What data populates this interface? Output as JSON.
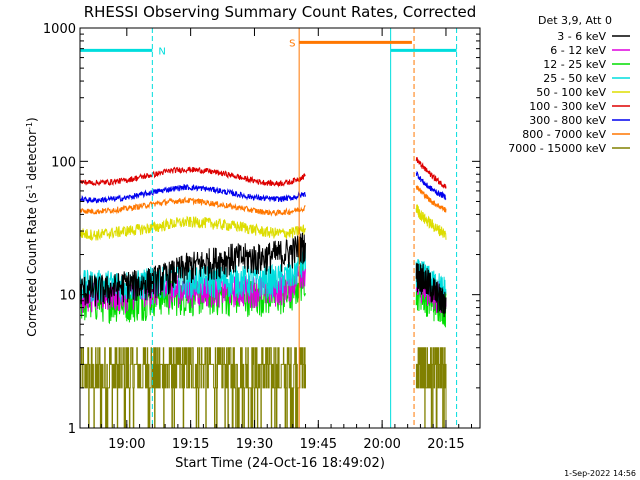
{
  "chart_data": {
    "type": "line",
    "title": "RHESSI Observing Summary Count Rates, Corrected",
    "xlabel": "Start Time (24-Oct-16 18:49:02)",
    "ylabel_main": "Corrected Count Rate (s",
    "ylabel_sup1": "-1",
    "ylabel_mid": " detector",
    "ylabel_sup2": "-1",
    "ylabel_end": ")",
    "yscale": "log",
    "ylim": [
      1,
      1000
    ],
    "xlim_minutes": [
      0,
      94
    ],
    "x_ticks": [
      {
        "minute": 11,
        "label": "19:00"
      },
      {
        "minute": 26,
        "label": "19:15"
      },
      {
        "minute": 41,
        "label": "19:30"
      },
      {
        "minute": 56,
        "label": "19:45"
      },
      {
        "minute": 71,
        "label": "20:00"
      },
      {
        "minute": 86,
        "label": "20:15"
      }
    ],
    "y_ticks": [
      {
        "value": 1,
        "label": "1"
      },
      {
        "value": 10,
        "label": "10"
      },
      {
        "value": 100,
        "label": "100"
      },
      {
        "value": 1000,
        "label": "1000"
      }
    ],
    "legend_title": "Det 3,9, Att 0",
    "legend_position": "right",
    "series": [
      {
        "name": "3 - 6 keV",
        "color": "#000000",
        "seg1": [
          11,
          11,
          11,
          12,
          12,
          13,
          14,
          16,
          17,
          18,
          19,
          19,
          19,
          20,
          21,
          24
        ],
        "seg2": [
          14,
          14,
          13,
          12,
          11,
          10,
          9,
          9
        ],
        "noise": 0.28
      },
      {
        "name": "6 - 12 keV",
        "color": "#dd00dd",
        "seg1": [
          10,
          10,
          10,
          10,
          11,
          11,
          11,
          11,
          11,
          11,
          11,
          11,
          11,
          11,
          12,
          16
        ],
        "seg2": [
          12,
          12,
          11,
          11,
          10,
          10,
          10,
          9
        ],
        "noise": 0.28
      },
      {
        "name": "12 - 25 keV",
        "color": "#00dd00",
        "seg1": [
          9,
          9,
          9,
          9,
          9,
          10,
          10,
          10,
          10,
          10,
          10,
          10,
          10,
          10,
          10,
          14
        ],
        "seg2": [
          11,
          11,
          10,
          10,
          9,
          9,
          9,
          8
        ],
        "noise": 0.32
      },
      {
        "name": "25 - 50 keV",
        "color": "#00dddd",
        "seg1": [
          12,
          12,
          12,
          12,
          12,
          13,
          13,
          13,
          13,
          13,
          13,
          13,
          13,
          13,
          14,
          18
        ],
        "seg2": [
          15,
          14,
          14,
          13,
          12,
          12,
          11,
          11
        ],
        "noise": 0.28
      },
      {
        "name": "50 - 100 keV",
        "color": "#dddd00",
        "seg1": [
          29,
          28,
          29,
          30,
          31,
          32,
          34,
          35,
          35,
          34,
          33,
          32,
          30,
          29,
          29,
          31
        ],
        "seg2": [
          45,
          40,
          37,
          35,
          33,
          31,
          30,
          28
        ],
        "noise": 0.1
      },
      {
        "name": "100 - 300 keV",
        "color": "#dd0000",
        "seg1": [
          70,
          69,
          70,
          72,
          76,
          80,
          85,
          87,
          86,
          83,
          79,
          74,
          70,
          68,
          70,
          78
        ],
        "seg2": [
          105,
          95,
          88,
          82,
          77,
          72,
          68,
          65
        ],
        "noise": 0.05
      },
      {
        "name": "300 - 800 keV",
        "color": "#0000ee",
        "seg1": [
          52,
          51,
          52,
          53,
          56,
          59,
          62,
          64,
          63,
          61,
          58,
          55,
          53,
          52,
          53,
          57
        ],
        "seg2": [
          82,
          74,
          68,
          64,
          61,
          58,
          56,
          54
        ],
        "noise": 0.05
      },
      {
        "name": "800 - 7000 keV",
        "color": "#ff7700",
        "seg1": [
          43,
          42,
          43,
          44,
          46,
          48,
          50,
          51,
          50,
          48,
          46,
          44,
          42,
          41,
          42,
          45
        ],
        "seg2": [
          66,
          60,
          56,
          52,
          49,
          47,
          45,
          43
        ],
        "noise": 0.05
      },
      {
        "name": "7000 - 15000 keV",
        "color": "#808000",
        "seg1": [
          2.5,
          2.5,
          2.6,
          2.6,
          2.7,
          2.7,
          2.8,
          2.8,
          2.8,
          2.8,
          2.7,
          2.7,
          2.6,
          2.6,
          2.6,
          3
        ],
        "seg2": [
          3,
          3,
          2.8,
          2.7,
          2.6,
          2.6,
          2.5,
          2.5
        ],
        "noise": 0.4,
        "steps": [
          1,
          2,
          3,
          4,
          5,
          6
        ]
      }
    ],
    "segment1_minutes": [
      0,
      53
    ],
    "gap_minutes": [
      53,
      79
    ],
    "segment2_minutes": [
      79,
      86
    ],
    "flags": [
      {
        "label": "N",
        "color": "#00dddd",
        "start_minute": 0,
        "end_minute": 17,
        "value": 680
      },
      {
        "label": "S",
        "color": "#ff7700",
        "start_minute": 51.5,
        "end_minute": 78,
        "value": 780
      },
      {
        "label": "",
        "color": "#00dddd",
        "start_minute": 73,
        "end_minute": 88.5,
        "value": 680
      }
    ],
    "vertical_lines": [
      {
        "minute": 17,
        "color": "#00dddd",
        "style": "dashed"
      },
      {
        "minute": 51.5,
        "color": "#ff7700",
        "style": "solid"
      },
      {
        "minute": 73,
        "color": "#00dddd",
        "style": "solid"
      },
      {
        "minute": 78.5,
        "color": "#ff7700",
        "style": "dashed"
      },
      {
        "minute": 88.5,
        "color": "#00dddd",
        "style": "dashed"
      }
    ],
    "grid": false
  },
  "footer": {
    "timestamp": "1-Sep-2022 14:56"
  }
}
